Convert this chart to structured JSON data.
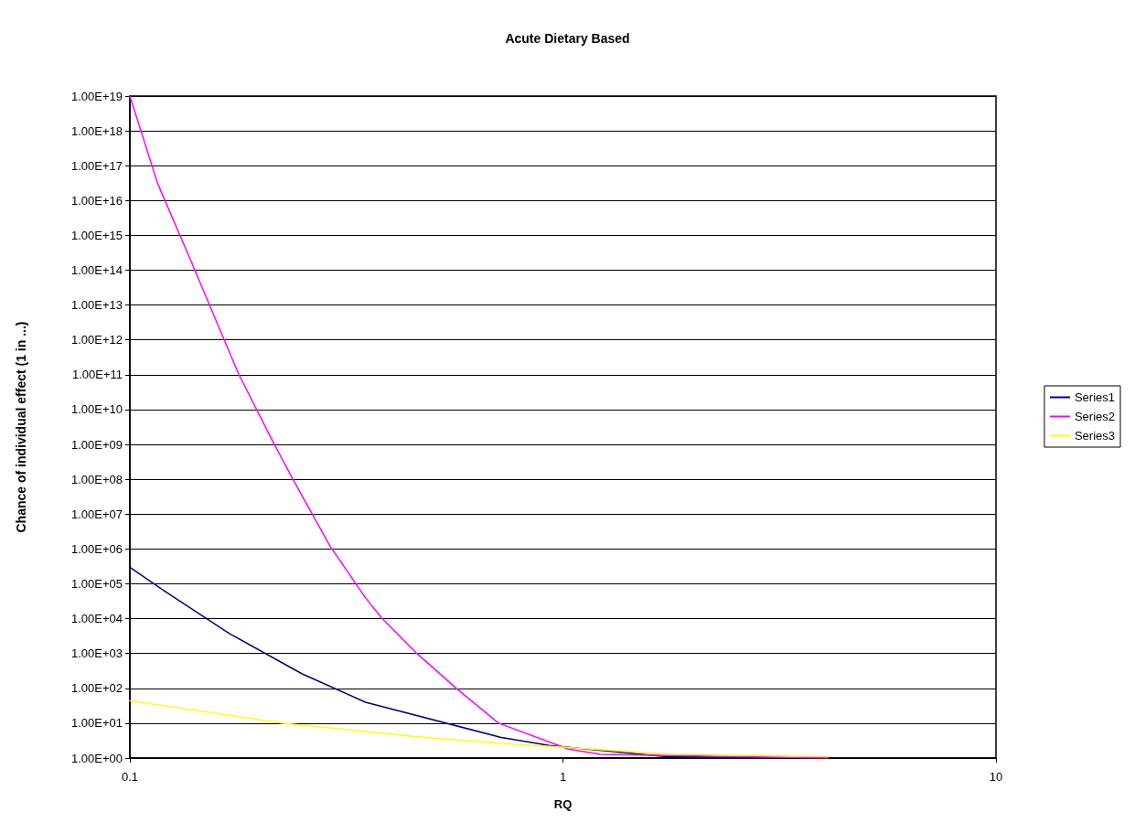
{
  "chart_data": {
    "type": "line",
    "title": "Acute Dietary Based",
    "xlabel": "RQ",
    "ylabel": "Chance of individual effect (1 in ...)",
    "log": "xy",
    "grid": "y",
    "legend": "right",
    "marker": "none",
    "line_style": "solid",
    "xlim": [
      0.1,
      10
    ],
    "xticks": [
      0.1,
      1,
      10
    ],
    "ylim": [
      1,
      1e+19
    ],
    "yticks": [
      {
        "value": 1,
        "label": "1.00E+00"
      },
      {
        "value": 10.0,
        "label": "1.00E+01"
      },
      {
        "value": 100.0,
        "label": "1.00E+02"
      },
      {
        "value": 1000.0,
        "label": "1.00E+03"
      },
      {
        "value": 10000.0,
        "label": "1.00E+04"
      },
      {
        "value": 100000.0,
        "label": "1.00E+05"
      },
      {
        "value": 1000000.0,
        "label": "1.00E+06"
      },
      {
        "value": 10000000.0,
        "label": "1.00E+07"
      },
      {
        "value": 100000000.0,
        "label": "1.00E+08"
      },
      {
        "value": 1000000000.0,
        "label": "1.00E+09"
      },
      {
        "value": 10000000000.0,
        "label": "1.00E+10"
      },
      {
        "value": 100000000000.0,
        "label": "1.00E+11"
      },
      {
        "value": 1000000000000.0,
        "label": "1.00E+12"
      },
      {
        "value": 10000000000000.0,
        "label": "1.00E+13"
      },
      {
        "value": 100000000000000.0,
        "label": "1.00E+14"
      },
      {
        "value": 1000000000000000.0,
        "label": "1.00E+15"
      },
      {
        "value": 1e+16,
        "label": "1.00E+16"
      },
      {
        "value": 1e+17,
        "label": "1.00E+17"
      },
      {
        "value": 1e+18,
        "label": "1.00E+18"
      },
      {
        "value": 1e+19,
        "label": "1.00E+19"
      }
    ],
    "series": [
      {
        "name": "Series1",
        "color": "#000080",
        "x": [
          0.1,
          0.12,
          0.17,
          0.25,
          0.35,
          0.72,
          0.93,
          1.73,
          4.1
        ],
        "values": [
          300000,
          63000,
          3700,
          260,
          40,
          3.9,
          2.3,
          1.1,
          1
        ]
      },
      {
        "name": "Series2",
        "color": "#ff00ff",
        "x": [
          0.1,
          0.116,
          0.138,
          0.178,
          0.212,
          0.237,
          0.29,
          0.35,
          0.38,
          0.46,
          0.57,
          0.71,
          1.03,
          1.22,
          4.1
        ],
        "values": [
          1e+19,
          3e+16,
          200000000000000.0,
          110000000000.0,
          1500000000.0,
          110000000.0,
          1200000.0,
          40000,
          11000,
          1000,
          95,
          10,
          1.8,
          1.27,
          1
        ]
      },
      {
        "name": "Series3",
        "color": "#ffff00",
        "x": [
          0.1,
          0.226,
          0.46,
          0.73,
          1.03,
          1.73,
          4.1
        ],
        "values": [
          44,
          10,
          4.1,
          2.6,
          2,
          1.3,
          1.1
        ]
      }
    ]
  }
}
